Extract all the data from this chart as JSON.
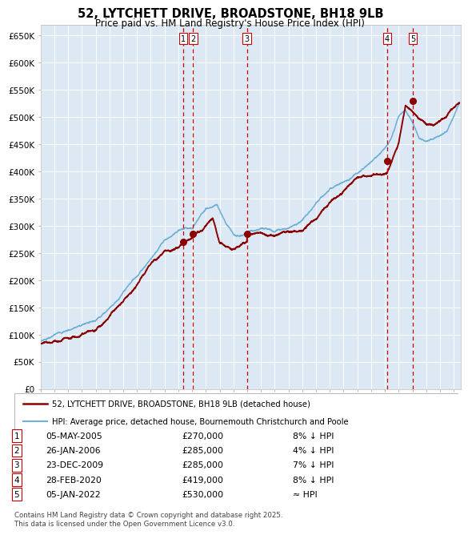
{
  "title": "52, LYTCHETT DRIVE, BROADSTONE, BH18 9LB",
  "subtitle": "Price paid vs. HM Land Registry's House Price Index (HPI)",
  "background_color": "#dce9f5",
  "plot_bg_color": "#dce9f5",
  "grid_color": "#ffffff",
  "ylim": [
    0,
    670000
  ],
  "yticks": [
    0,
    50000,
    100000,
    150000,
    200000,
    250000,
    300000,
    350000,
    400000,
    450000,
    500000,
    550000,
    600000,
    650000
  ],
  "ytick_labels": [
    "£0",
    "£50K",
    "£100K",
    "£150K",
    "£200K",
    "£250K",
    "£300K",
    "£350K",
    "£400K",
    "£450K",
    "£500K",
    "£550K",
    "£600K",
    "£650K"
  ],
  "sale_color": "#8b0000",
  "hpi_color": "#6baed6",
  "vline_color": "#cc0000",
  "marker_color": "#8b0000",
  "sale_dates": [
    2005.35,
    2006.07,
    2009.98,
    2020.16,
    2022.02
  ],
  "sale_prices": [
    270000,
    285000,
    285000,
    419000,
    530000
  ],
  "sale_labels": [
    "1",
    "2",
    "3",
    "4",
    "5"
  ],
  "legend_sale": "52, LYTCHETT DRIVE, BROADSTONE, BH18 9LB (detached house)",
  "legend_hpi": "HPI: Average price, detached house, Bournemouth Christchurch and Poole",
  "table_rows": [
    [
      "1",
      "05-MAY-2005",
      "£270,000",
      "8% ↓ HPI"
    ],
    [
      "2",
      "26-JAN-2006",
      "£285,000",
      "4% ↓ HPI"
    ],
    [
      "3",
      "23-DEC-2009",
      "£285,000",
      "7% ↓ HPI"
    ],
    [
      "4",
      "28-FEB-2020",
      "£419,000",
      "8% ↓ HPI"
    ],
    [
      "5",
      "05-JAN-2022",
      "£530,000",
      "≈ HPI"
    ]
  ],
  "footnote": "Contains HM Land Registry data © Crown copyright and database right 2025.\nThis data is licensed under the Open Government Licence v3.0.",
  "xmin": 1995.0,
  "xmax": 2025.5,
  "hpi_x": [
    1995,
    1996,
    1997,
    1998,
    1999,
    2000,
    2001,
    2002,
    2003,
    2004,
    2005,
    2006,
    2007,
    2007.8,
    2008.5,
    2009,
    2009.5,
    2010,
    2011,
    2012,
    2013,
    2014,
    2015,
    2016,
    2017,
    2018,
    2019,
    2019.5,
    2020,
    2020.5,
    2021,
    2021.5,
    2022,
    2022.5,
    2023,
    2023.5,
    2024,
    2024.5,
    2025.4
  ],
  "hpi_y": [
    88000,
    100000,
    110000,
    120000,
    132000,
    158000,
    188000,
    218000,
    252000,
    288000,
    300000,
    306000,
    342000,
    347000,
    312000,
    296000,
    291000,
    296000,
    306000,
    301000,
    312000,
    328000,
    362000,
    392000,
    402000,
    418000,
    437000,
    447000,
    457000,
    477000,
    512000,
    522000,
    500000,
    472000,
    468000,
    472000,
    478000,
    488000,
    542000
  ],
  "sale_x": [
    1995,
    1996,
    1997,
    1998,
    1999,
    2000,
    2001,
    2002,
    2003,
    2004,
    2005.0,
    2005.35,
    2006.07,
    2007,
    2007.5,
    2008,
    2009,
    2009.98,
    2010,
    2011,
    2012,
    2013,
    2014,
    2015,
    2016,
    2017,
    2018,
    2019,
    2019.5,
    2020.0,
    2020.16,
    2021,
    2021.5,
    2022.02,
    2022.5,
    2023,
    2023.5,
    2024,
    2025.4
  ],
  "sale_y": [
    83000,
    88000,
    98000,
    108000,
    118000,
    142000,
    167000,
    197000,
    237000,
    262000,
    266000,
    270000,
    285000,
    312000,
    332000,
    287000,
    272000,
    285000,
    297000,
    302000,
    302000,
    307000,
    312000,
    332000,
    357000,
    382000,
    412000,
    417000,
    417000,
    417000,
    419000,
    472000,
    542000,
    530000,
    518000,
    508000,
    503000,
    508000,
    543000
  ]
}
